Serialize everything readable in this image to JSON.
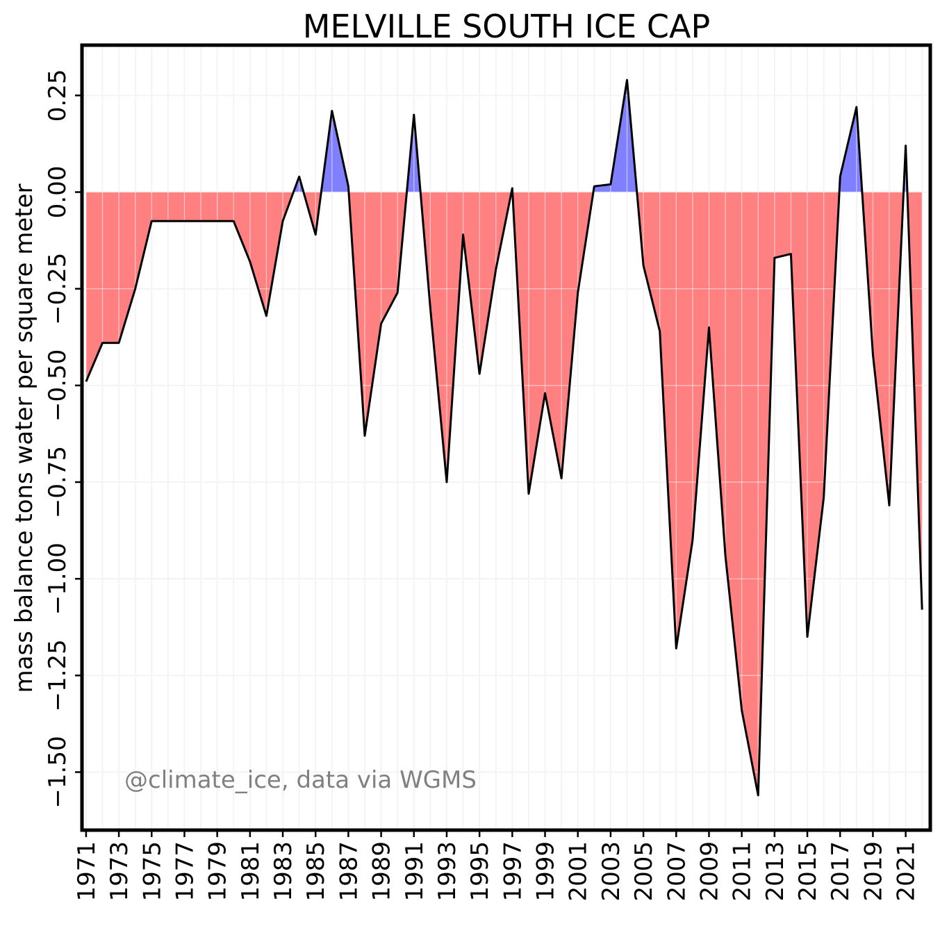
{
  "chart_data": {
    "type": "area",
    "title": "MELVILLE SOUTH ICE CAP",
    "xlabel": "",
    "ylabel": "mass balance tons water per square meter",
    "annotation": "@climate_ice, data via WGMS",
    "x": [
      1971,
      1972,
      1973,
      1974,
      1975,
      1976,
      1977,
      1978,
      1979,
      1980,
      1981,
      1982,
      1983,
      1984,
      1985,
      1986,
      1987,
      1988,
      1989,
      1990,
      1991,
      1992,
      1993,
      1994,
      1995,
      1996,
      1997,
      1998,
      1999,
      2000,
      2001,
      2002,
      2003,
      2004,
      2005,
      2006,
      2007,
      2008,
      2009,
      2010,
      2011,
      2012,
      2013,
      2014,
      2015,
      2016,
      2017,
      2018,
      2019,
      2020,
      2021,
      2022
    ],
    "values": [
      -0.49,
      -0.39,
      -0.39,
      -0.25,
      -0.075,
      -0.075,
      -0.075,
      -0.075,
      -0.075,
      -0.075,
      -0.18,
      -0.32,
      -0.075,
      0.04,
      -0.11,
      0.21,
      0.015,
      -0.63,
      -0.34,
      -0.26,
      0.2,
      -0.3,
      -0.75,
      -0.11,
      -0.47,
      -0.2,
      0.01,
      -0.78,
      -0.52,
      -0.74,
      -0.26,
      0.015,
      0.02,
      0.29,
      -0.19,
      -0.36,
      -1.18,
      -0.9,
      -0.35,
      -0.94,
      -1.34,
      -1.56,
      -0.17,
      -0.16,
      -1.15,
      -0.79,
      0.04,
      0.22,
      -0.42,
      -0.81,
      0.12,
      -1.08
    ],
    "xlim": [
      1970.75,
      2022.5
    ],
    "ylim": [
      -1.65,
      0.38
    ],
    "yticks": [
      -1.5,
      -1.25,
      -1.0,
      -0.75,
      -0.5,
      -0.25,
      0.0,
      0.25
    ],
    "ytick_labels": [
      "−1.50",
      "−1.25",
      "−1.00",
      "−0.75",
      "−0.50",
      "−0.25",
      "0.00",
      "0.25"
    ],
    "xticks": [
      1971,
      1973,
      1975,
      1977,
      1979,
      1981,
      1983,
      1985,
      1987,
      1989,
      1991,
      1993,
      1995,
      1997,
      1999,
      2001,
      2003,
      2005,
      2007,
      2009,
      2011,
      2013,
      2015,
      2017,
      2019,
      2021
    ],
    "xtick_labels": [
      "1971",
      "1973",
      "1975",
      "1977",
      "1979",
      "1981",
      "1983",
      "1985",
      "1987",
      "1989",
      "1991",
      "1993",
      "1995",
      "1997",
      "1999",
      "2001",
      "2003",
      "2005",
      "2007",
      "2009",
      "2011",
      "2013",
      "2015",
      "2017",
      "2019",
      "2021"
    ],
    "xgrid_years": [
      1971,
      1972,
      1973,
      1974,
      1975,
      1976,
      1977,
      1978,
      1979,
      1980,
      1981,
      1982,
      1983,
      1984,
      1985,
      1986,
      1987,
      1988,
      1989,
      1990,
      1991,
      1992,
      1993,
      1994,
      1995,
      1996,
      1997,
      1998,
      1999,
      2000,
      2001,
      2002,
      2003,
      2004,
      2005,
      2006,
      2007,
      2008,
      2009,
      2010,
      2011,
      2012,
      2013,
      2014,
      2015,
      2016,
      2017,
      2018,
      2019,
      2020,
      2021,
      2022
    ],
    "grid": true,
    "colors": {
      "positive_fill": "#8080ff",
      "negative_fill": "#ff8080",
      "line": "#000000",
      "credit": "#808080"
    }
  }
}
